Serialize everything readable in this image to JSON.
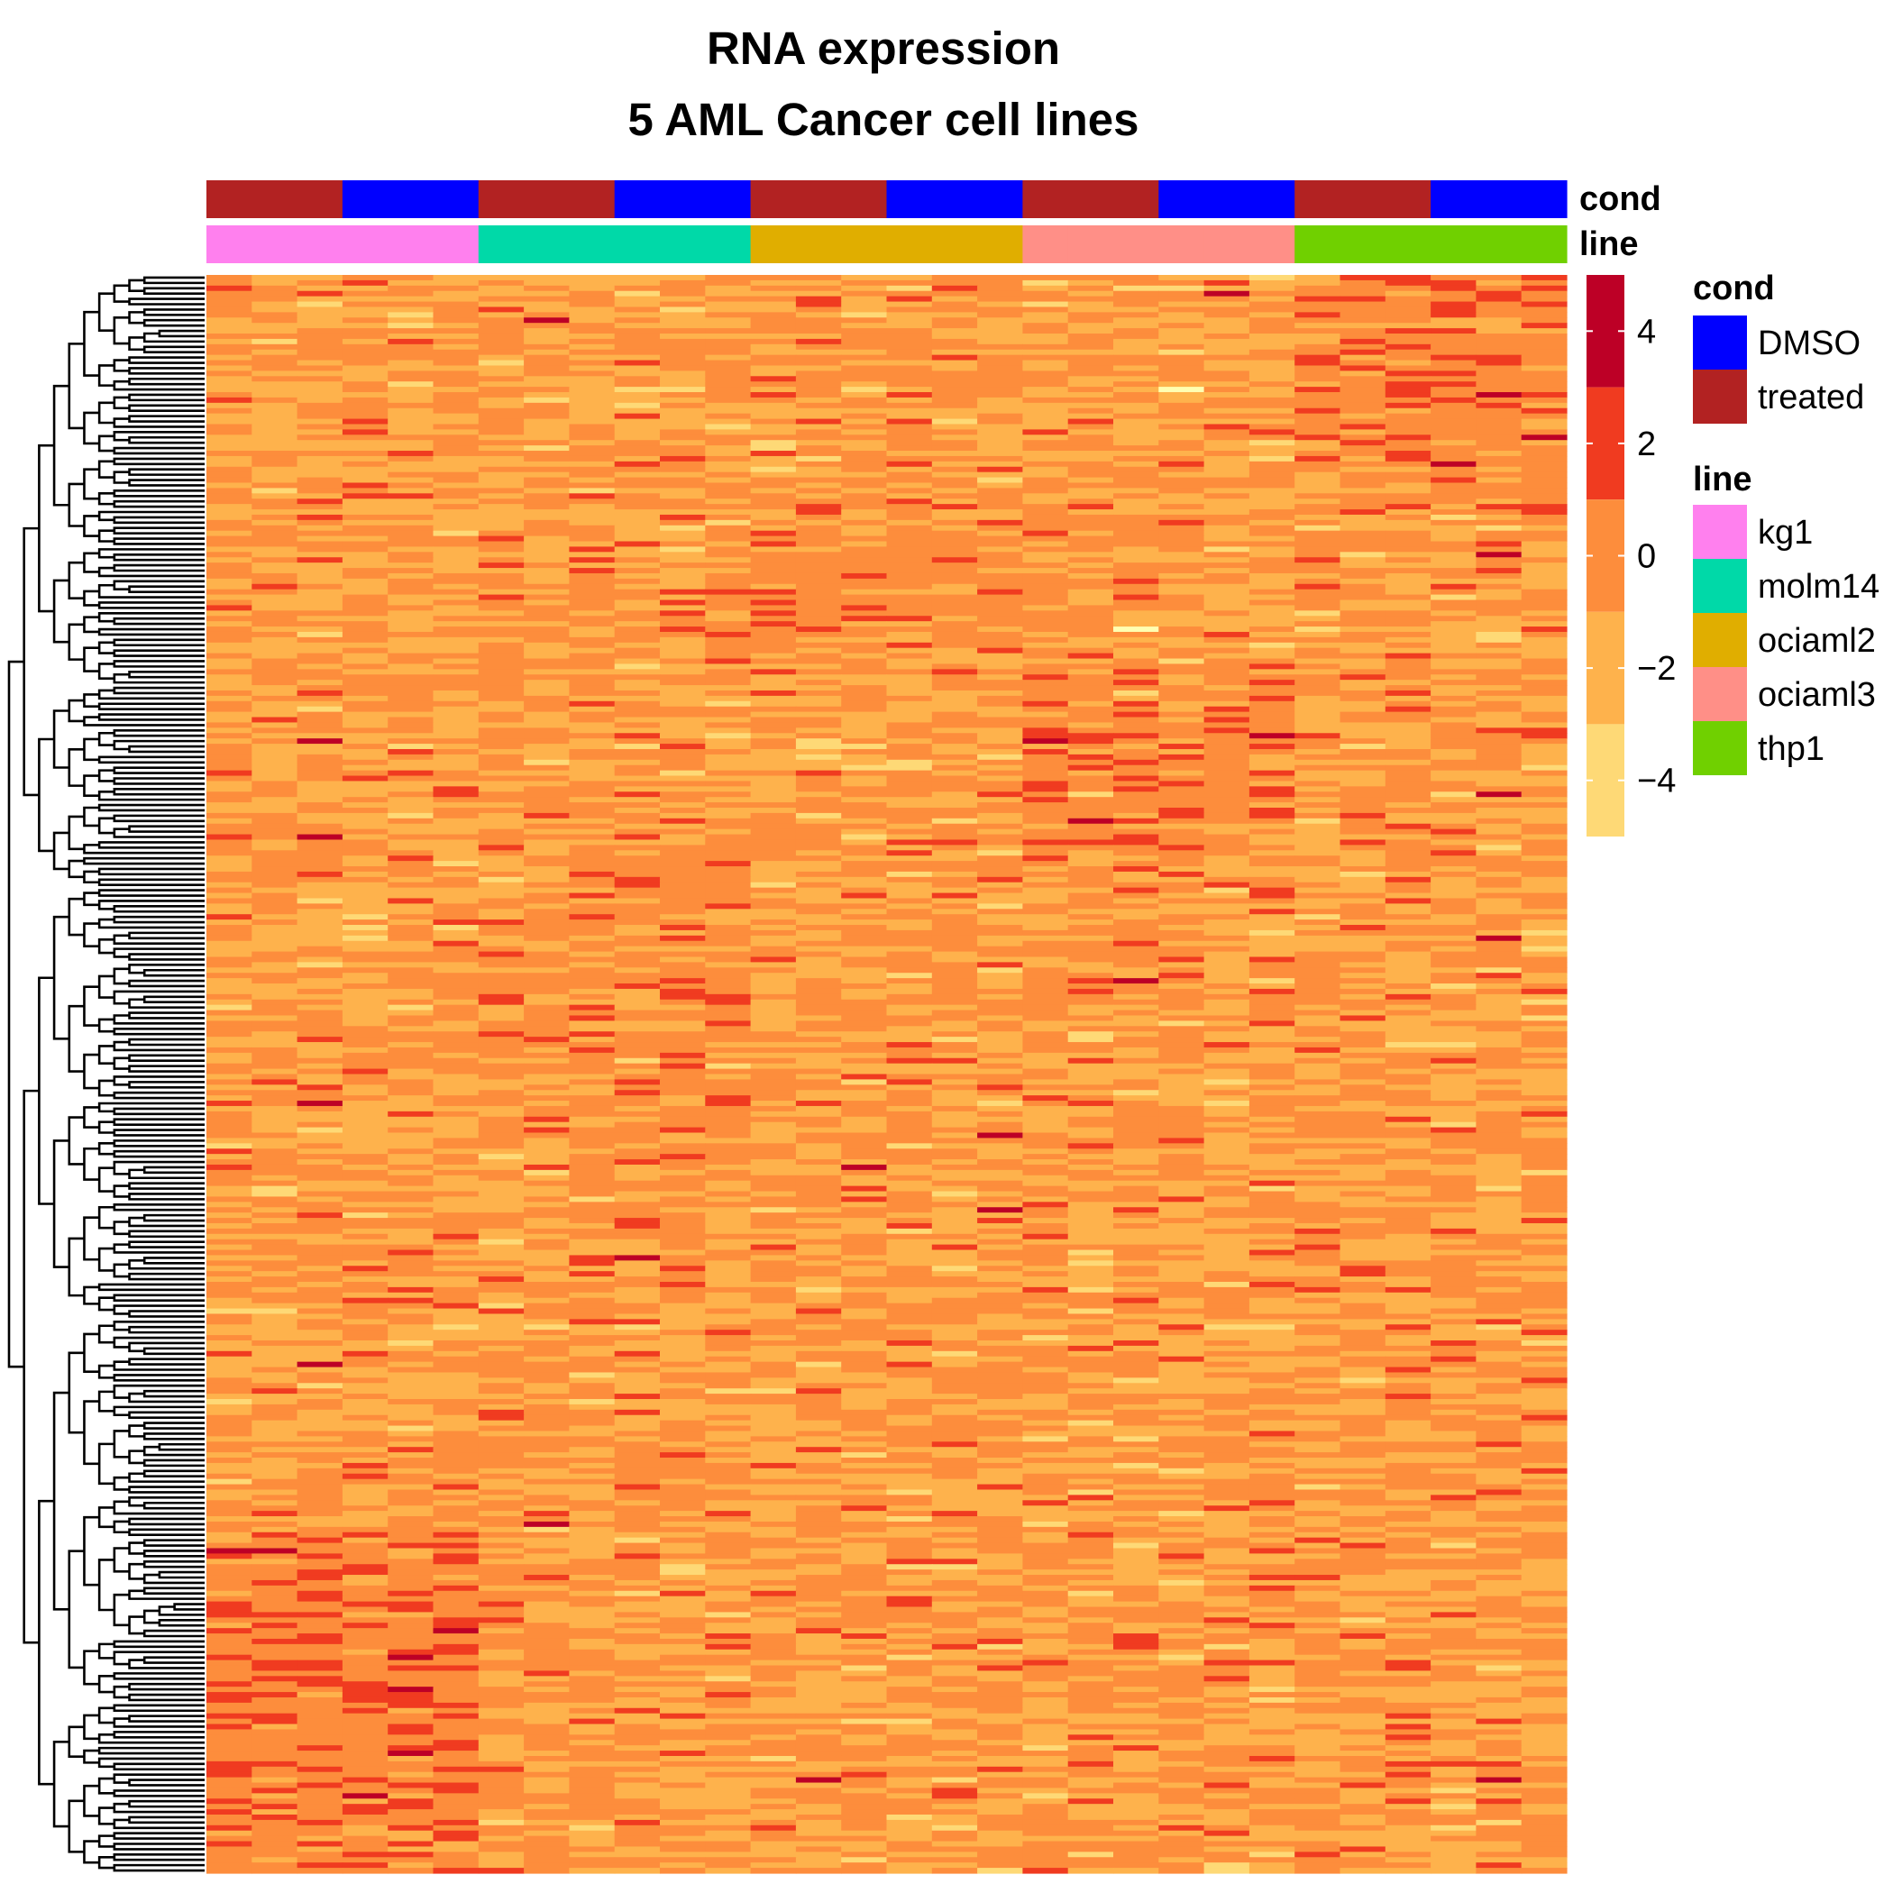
{
  "chart_data": {
    "type": "heatmap",
    "title_lines": [
      "RNA expression",
      "5 AML Cancer cell lines"
    ],
    "columns": 30,
    "rows": 300,
    "annotation_rows": [
      {
        "label": "cond",
        "values": [
          "treated",
          "treated",
          "treated",
          "DMSO",
          "DMSO",
          "DMSO",
          "treated",
          "treated",
          "treated",
          "DMSO",
          "DMSO",
          "DMSO",
          "treated",
          "treated",
          "treated",
          "DMSO",
          "DMSO",
          "DMSO",
          "treated",
          "treated",
          "treated",
          "DMSO",
          "DMSO",
          "DMSO",
          "treated",
          "treated",
          "treated",
          "DMSO",
          "DMSO",
          "DMSO"
        ]
      },
      {
        "label": "line",
        "values": [
          "kg1",
          "kg1",
          "kg1",
          "kg1",
          "kg1",
          "kg1",
          "molm14",
          "molm14",
          "molm14",
          "molm14",
          "molm14",
          "molm14",
          "ociaml2",
          "ociaml2",
          "ociaml2",
          "ociaml2",
          "ociaml2",
          "ociaml2",
          "ociaml3",
          "ociaml3",
          "ociaml3",
          "ociaml3",
          "ociaml3",
          "ociaml3",
          "thp1",
          "thp1",
          "thp1",
          "thp1",
          "thp1",
          "thp1"
        ]
      }
    ],
    "color_scale": {
      "ticks": [
        4,
        2,
        0,
        -2,
        -4
      ],
      "tick_labels": [
        "4",
        "2",
        "0",
        "−2",
        "−4"
      ],
      "range": [
        -5,
        5
      ],
      "bins": [
        {
          "from": 3,
          "to": 5,
          "color": "#bd0026"
        },
        {
          "from": 1,
          "to": 3,
          "color": "#f03b20"
        },
        {
          "from": -1,
          "to": 1,
          "color": "#fd8d3c"
        },
        {
          "from": -3,
          "to": -1,
          "color": "#feb24c"
        },
        {
          "from": -5,
          "to": -3,
          "color": "#fed976"
        },
        {
          "from": -7,
          "to": -5,
          "color": "#ffffb2"
        }
      ]
    },
    "legends": [
      {
        "title": "cond",
        "items": [
          {
            "label": "DMSO",
            "color": "#0000ff"
          },
          {
            "label": "treated",
            "color": "#b22222"
          }
        ]
      },
      {
        "title": "line",
        "items": [
          {
            "label": "kg1",
            "color": "#ff80ee"
          },
          {
            "label": "molm14",
            "color": "#00d9a8"
          },
          {
            "label": "ociaml2",
            "color": "#e0ae00"
          },
          {
            "label": "ociaml3",
            "color": "#ff8f87"
          },
          {
            "label": "thp1",
            "color": "#70d000"
          }
        ]
      }
    ]
  }
}
